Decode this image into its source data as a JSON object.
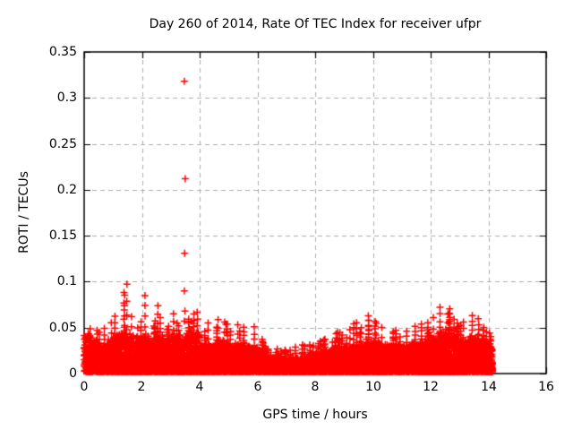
{
  "chart_data": {
    "type": "scatter",
    "title": "Day 260 of 2014, Rate Of TEC Index for receiver ufpr",
    "xlabel": "GPS time / hours",
    "ylabel": "ROTI / TECUs",
    "xlim": [
      0,
      16
    ],
    "ylim": [
      0,
      0.35
    ],
    "xticks": [
      0,
      2,
      4,
      6,
      8,
      10,
      12,
      14,
      16
    ],
    "yticks": [
      0,
      0.05,
      0.1,
      0.15,
      0.2,
      0.25,
      0.3,
      0.35
    ],
    "xtick_labels": [
      "0",
      "2",
      "4",
      "6",
      "8",
      "10",
      "12",
      "14",
      "16"
    ],
    "ytick_labels": [
      "0",
      "0.05",
      "0.1",
      "0.15",
      "0.2",
      "0.25",
      "0.3",
      "0.35"
    ],
    "grid": true,
    "legend": "none",
    "marker": "plus",
    "marker_color": "#ff0000",
    "grid_color": "#adadad",
    "border_color": "#000000",
    "text_color": "#000000",
    "data_span_hours": [
      0,
      14.15
    ],
    "outliers": [
      [
        3.47,
        0.318
      ],
      [
        3.5,
        0.212
      ],
      [
        3.48,
        0.131
      ],
      [
        3.47,
        0.09
      ],
      [
        3.49,
        0.068
      ],
      [
        3.47,
        0.057
      ]
    ],
    "band_envelope": {
      "comment": "dense scatter band; per 0.25h bin: [typical top of dense band, max spike height] in TECUs",
      "x_start": 0,
      "x_step": 0.25,
      "x_end": 14.15,
      "y_floor": 0.002,
      "bins": [
        [
          0.04,
          0.05
        ],
        [
          0.034,
          0.046
        ],
        [
          0.03,
          0.05
        ],
        [
          0.034,
          0.056
        ],
        [
          0.04,
          0.062
        ],
        [
          0.044,
          0.096
        ],
        [
          0.04,
          0.062
        ],
        [
          0.036,
          0.056
        ],
        [
          0.04,
          0.086
        ],
        [
          0.036,
          0.056
        ],
        [
          0.04,
          0.074
        ],
        [
          0.036,
          0.052
        ],
        [
          0.04,
          0.066
        ],
        [
          0.034,
          0.052
        ],
        [
          0.04,
          0.06
        ],
        [
          0.044,
          0.068
        ],
        [
          0.03,
          0.046
        ],
        [
          0.03,
          0.056
        ],
        [
          0.034,
          0.06
        ],
        [
          0.034,
          0.056
        ],
        [
          0.03,
          0.046
        ],
        [
          0.03,
          0.052
        ],
        [
          0.03,
          0.05
        ],
        [
          0.028,
          0.05
        ],
        [
          0.024,
          0.038
        ],
        [
          0.019,
          0.03
        ],
        [
          0.016,
          0.026
        ],
        [
          0.016,
          0.026
        ],
        [
          0.015,
          0.024
        ],
        [
          0.016,
          0.028
        ],
        [
          0.017,
          0.03
        ],
        [
          0.019,
          0.032
        ],
        [
          0.021,
          0.034
        ],
        [
          0.023,
          0.038
        ],
        [
          0.025,
          0.042
        ],
        [
          0.027,
          0.044
        ],
        [
          0.029,
          0.048
        ],
        [
          0.03,
          0.055
        ],
        [
          0.03,
          0.05
        ],
        [
          0.034,
          0.064
        ],
        [
          0.034,
          0.058
        ],
        [
          0.032,
          0.05
        ],
        [
          0.03,
          0.046
        ],
        [
          0.03,
          0.048
        ],
        [
          0.03,
          0.046
        ],
        [
          0.032,
          0.05
        ],
        [
          0.032,
          0.055
        ],
        [
          0.034,
          0.056
        ],
        [
          0.038,
          0.06
        ],
        [
          0.042,
          0.072
        ],
        [
          0.044,
          0.07
        ],
        [
          0.038,
          0.058
        ],
        [
          0.034,
          0.056
        ],
        [
          0.038,
          0.064
        ],
        [
          0.038,
          0.06
        ],
        [
          0.034,
          0.05
        ],
        [
          0.03,
          0.044
        ]
      ]
    },
    "synthesis": {
      "seed": 2014260,
      "points_per_bin": 150
    }
  }
}
